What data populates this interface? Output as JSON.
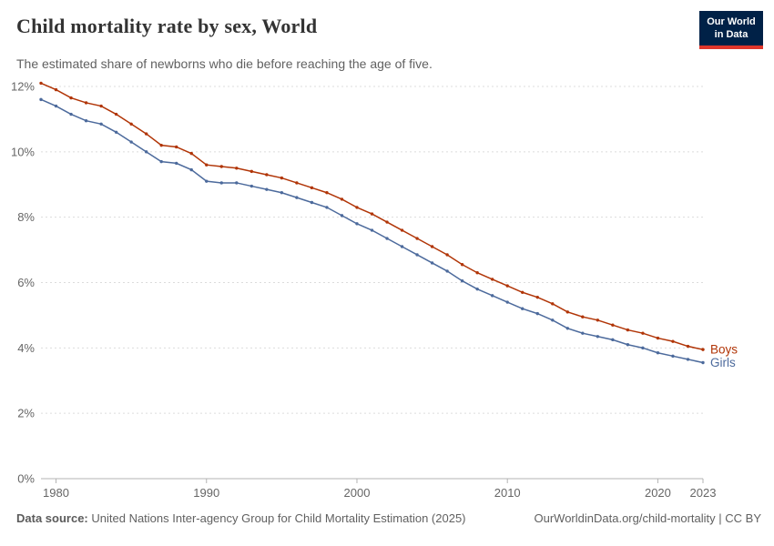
{
  "header": {
    "title": "Child mortality rate by sex, World",
    "subtitle": "The estimated share of newborns who die before reaching the age of five.",
    "logo": {
      "line1": "Our World",
      "line2": "in Data",
      "bg": "#002147",
      "accent": "#e0362b"
    }
  },
  "chart_data": {
    "type": "line",
    "title": "Child mortality rate by sex, World",
    "xlabel": "",
    "ylabel": "",
    "grid": true,
    "legend_position": "end-of-line-labels",
    "ylim": [
      0,
      12
    ],
    "yticks": [
      {
        "value": 0,
        "label": "0%"
      },
      {
        "value": 2,
        "label": "2%"
      },
      {
        "value": 4,
        "label": "4%"
      },
      {
        "value": 6,
        "label": "6%"
      },
      {
        "value": 8,
        "label": "8%"
      },
      {
        "value": 10,
        "label": "10%"
      },
      {
        "value": 12,
        "label": "12%"
      }
    ],
    "xticks": [
      {
        "value": 1980,
        "label": "1980"
      },
      {
        "value": 1990,
        "label": "1990"
      },
      {
        "value": 2000,
        "label": "2000"
      },
      {
        "value": 2010,
        "label": "2010"
      },
      {
        "value": 2020,
        "label": "2020"
      },
      {
        "value": 2023,
        "label": "2023"
      }
    ],
    "x": [
      1979,
      1980,
      1981,
      1982,
      1983,
      1984,
      1985,
      1986,
      1987,
      1988,
      1989,
      1990,
      1991,
      1992,
      1993,
      1994,
      1995,
      1996,
      1997,
      1998,
      1999,
      2000,
      2001,
      2002,
      2003,
      2004,
      2005,
      2006,
      2007,
      2008,
      2009,
      2010,
      2011,
      2012,
      2013,
      2014,
      2015,
      2016,
      2017,
      2018,
      2019,
      2020,
      2021,
      2022,
      2023
    ],
    "series": [
      {
        "name": "Boys",
        "color": "#b13507",
        "values": [
          12.1,
          11.9,
          11.65,
          11.5,
          11.4,
          11.15,
          10.85,
          10.55,
          10.2,
          10.15,
          9.95,
          9.6,
          9.55,
          9.5,
          9.4,
          9.3,
          9.2,
          9.05,
          8.9,
          8.75,
          8.55,
          8.3,
          8.1,
          7.85,
          7.6,
          7.35,
          7.1,
          6.85,
          6.55,
          6.3,
          6.1,
          5.9,
          5.7,
          5.55,
          5.35,
          5.1,
          4.95,
          4.85,
          4.7,
          4.55,
          4.45,
          4.3,
          4.2,
          4.05,
          3.95
        ]
      },
      {
        "name": "Girls",
        "color": "#4c6a9c",
        "values": [
          11.6,
          11.4,
          11.15,
          10.95,
          10.85,
          10.6,
          10.3,
          10.0,
          9.7,
          9.65,
          9.45,
          9.1,
          9.05,
          9.05,
          8.95,
          8.85,
          8.75,
          8.6,
          8.45,
          8.3,
          8.05,
          7.8,
          7.6,
          7.35,
          7.1,
          6.85,
          6.6,
          6.35,
          6.05,
          5.8,
          5.6,
          5.4,
          5.2,
          5.05,
          4.85,
          4.6,
          4.45,
          4.35,
          4.25,
          4.1,
          4.0,
          3.85,
          3.75,
          3.65,
          3.55
        ]
      }
    ]
  },
  "footer": {
    "source_label": "Data source:",
    "source_text": "United Nations Inter-agency Group for Child Mortality Estimation (2025)",
    "right_text": "OurWorldinData.org/child-mortality | CC BY"
  }
}
